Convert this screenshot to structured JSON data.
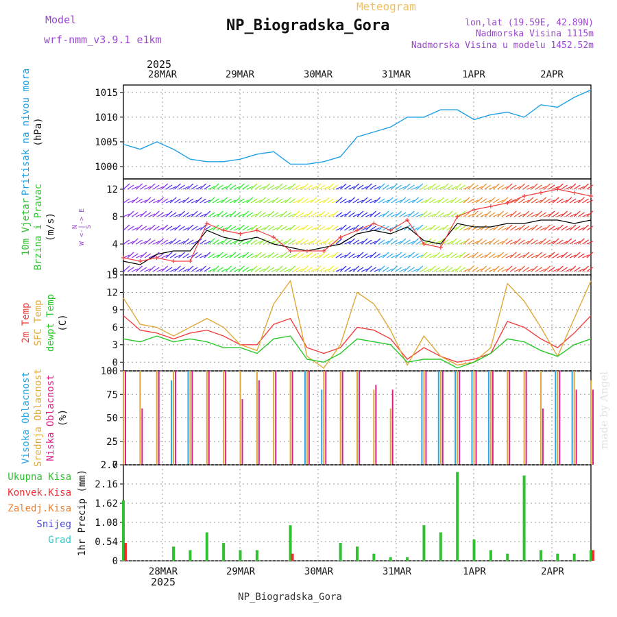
{
  "header": {
    "model_label": "Model",
    "model_name": "wrf-nmm_v3.9.1 e1km",
    "title": "NP_Biogradska_Gora",
    "subtitle": "Meteogram",
    "coords": "lon,lat (19.59E, 42.89N)",
    "elevation": "Nadmorska Visina 1115m",
    "model_elevation": "Nadmorska Visina u modelu 1452.52m",
    "footer": "NP_Biogradska_Gora",
    "credit": "made by Angel"
  },
  "colors": {
    "pressure": "#1ea0e6",
    "title_purple": "#9a48d0",
    "subtitle_gold": "#f0c060",
    "temp2m": "#f04040",
    "sfc": "#e0a838",
    "dew": "#28c828",
    "high_cloud": "#28a8e8",
    "mid_cloud": "#e0a838",
    "low_cloud": "#e0208a",
    "rain": "#30c030",
    "convective": "#f03030",
    "freezing": "#f08030",
    "snow": "#4848e0",
    "hail": "#30c8c8"
  },
  "time_axis": {
    "day_labels": [
      "28MAR",
      "29MAR",
      "30MAR",
      "31MAR",
      "1APR",
      "2APR"
    ],
    "year": "2025"
  },
  "chart_data": [
    {
      "type": "line",
      "panel": "pressure",
      "ylabel_lines": [
        "Pritisak na nivou mora",
        "(hPa)"
      ],
      "ylim": [
        997.5,
        1016.5
      ],
      "yticks": [
        "1000",
        "1005",
        "1010",
        "1015"
      ],
      "ytick_values": [
        1000,
        1005,
        1010,
        1015
      ],
      "x_hours": [
        0,
        6,
        12,
        18,
        24,
        30,
        36,
        42,
        48,
        54,
        60,
        66,
        72,
        78,
        84,
        90,
        96,
        102,
        108,
        114,
        120,
        126,
        132,
        138,
        144,
        150,
        156,
        162,
        168
      ],
      "series": [
        {
          "values": [
            1004.5,
            1003.5,
            1005.0,
            1003.5,
            1001.5,
            1001.0,
            1001.0,
            1001.5,
            1002.5,
            1003.0,
            1000.5,
            1000.5,
            1001.0,
            1002.0,
            1006.0,
            1007.0,
            1008.0,
            1010.0,
            1010.0,
            1011.5,
            1011.5,
            1009.5,
            1010.5,
            1011.0,
            1010.0,
            1012.5,
            1012.0,
            1014.0,
            1015.5
          ]
        }
      ]
    },
    {
      "type": "line",
      "panel": "wind",
      "ylabel_lines": [
        "10m Vjetar",
        "Brzina i Pravac",
        "(m/s)"
      ],
      "compass_lines": [
        "N",
        "W <-|-> E",
        "S"
      ],
      "ylim": [
        -0.5,
        13.5
      ],
      "yticks": [
        "0",
        "4",
        "8",
        "12"
      ],
      "ytick_values": [
        0,
        4,
        8,
        12
      ],
      "x_hours": [
        0,
        6,
        12,
        18,
        24,
        30,
        36,
        42,
        48,
        54,
        60,
        66,
        72,
        78,
        84,
        90,
        96,
        102,
        108,
        114,
        120,
        126,
        132,
        138,
        144,
        150,
        156,
        162,
        168
      ],
      "series": [
        {
          "name": "speed",
          "values": [
            1.5,
            1.0,
            2.5,
            3.0,
            3.0,
            6.0,
            5.0,
            4.5,
            5.0,
            4.0,
            3.5,
            3.0,
            3.5,
            4.0,
            5.5,
            6.0,
            5.5,
            6.5,
            4.5,
            4.0,
            7.0,
            6.5,
            6.5,
            7.0,
            7.0,
            7.5,
            7.5,
            7.0,
            7.5
          ]
        },
        {
          "name": "gust",
          "values": [
            2.0,
            1.5,
            2.0,
            1.5,
            1.5,
            7.0,
            6.0,
            5.5,
            6.0,
            5.0,
            3.0,
            3.0,
            3.0,
            5.0,
            6.0,
            7.0,
            6.0,
            7.5,
            4.0,
            3.5,
            8.0,
            9.0,
            9.5,
            10.0,
            11.0,
            11.5,
            12.0,
            11.5,
            11.0
          ]
        }
      ]
    },
    {
      "type": "line",
      "panel": "temperature",
      "ylabel_lines": [
        "2m Temp",
        "SFC Temp",
        "dewpt Temp",
        "(C)"
      ],
      "ylim": [
        -1.5,
        15.0
      ],
      "yticks": [
        "0",
        "3",
        "6",
        "9",
        "12",
        "15"
      ],
      "ytick_values": [
        0,
        3,
        6,
        9,
        12,
        15
      ],
      "x_hours": [
        0,
        6,
        12,
        18,
        24,
        30,
        36,
        42,
        48,
        54,
        60,
        66,
        72,
        78,
        84,
        90,
        96,
        102,
        108,
        114,
        120,
        126,
        132,
        138,
        144,
        150,
        156,
        162,
        168
      ],
      "series": [
        {
          "name": "2m Temp",
          "values": [
            8.0,
            5.5,
            5.0,
            4.0,
            5.0,
            5.5,
            4.5,
            3.0,
            3.0,
            6.5,
            7.5,
            2.5,
            1.5,
            2.5,
            6.0,
            5.5,
            4.0,
            0.5,
            2.5,
            1.0,
            0.0,
            0.5,
            1.5,
            7.0,
            6.0,
            4.0,
            2.5,
            5.0,
            8.0
          ]
        },
        {
          "name": "SFC Temp",
          "values": [
            11.0,
            6.5,
            6.0,
            4.5,
            6.0,
            7.5,
            6.0,
            3.0,
            2.0,
            10.0,
            14.0,
            1.0,
            -1.0,
            3.0,
            12.0,
            10.0,
            5.5,
            -0.5,
            4.5,
            1.0,
            -0.5,
            0.0,
            2.5,
            13.5,
            10.5,
            6.0,
            1.0,
            7.5,
            14.0
          ]
        },
        {
          "name": "dewpt Temp",
          "values": [
            4.0,
            3.5,
            4.5,
            3.5,
            4.0,
            3.5,
            2.5,
            2.5,
            1.5,
            4.0,
            4.5,
            0.5,
            0.0,
            1.5,
            4.0,
            3.5,
            3.0,
            0.0,
            0.5,
            0.5,
            -1.0,
            0.0,
            1.5,
            4.0,
            3.5,
            2.0,
            1.0,
            3.0,
            4.0
          ]
        }
      ]
    },
    {
      "type": "bar",
      "panel": "clouds",
      "ylabel_lines": [
        "Visoka Oblacnost",
        "Srednja Oblacnost",
        "Niska Oblacnost",
        "(%)"
      ],
      "ylim": [
        0,
        100
      ],
      "yticks": [
        "0",
        "25",
        "50",
        "75",
        "100"
      ],
      "ytick_values": [
        0,
        25,
        50,
        75,
        100
      ],
      "x_hours": [
        0,
        6,
        12,
        18,
        24,
        30,
        36,
        42,
        48,
        54,
        60,
        66,
        72,
        78,
        84,
        90,
        96,
        102,
        108,
        114,
        120,
        126,
        132,
        138,
        144,
        150,
        156,
        162,
        168
      ],
      "series": [
        {
          "name": "Visoka Oblacnost",
          "values": [
            0,
            0,
            0,
            90,
            100,
            0,
            0,
            0,
            0,
            0,
            0,
            100,
            80,
            0,
            0,
            0,
            0,
            0,
            100,
            100,
            100,
            100,
            100,
            0,
            0,
            0,
            100,
            100,
            0
          ]
        },
        {
          "name": "Srednja Oblacnost",
          "values": [
            100,
            100,
            100,
            100,
            100,
            100,
            100,
            100,
            100,
            100,
            100,
            100,
            100,
            100,
            100,
            80,
            60,
            0,
            100,
            100,
            100,
            100,
            100,
            100,
            100,
            100,
            100,
            100,
            90
          ]
        },
        {
          "name": "Niska Oblacnost",
          "values": [
            100,
            60,
            100,
            100,
            100,
            100,
            100,
            70,
            90,
            100,
            100,
            100,
            100,
            100,
            100,
            85,
            80,
            0,
            100,
            100,
            100,
            100,
            100,
            100,
            100,
            60,
            100,
            80,
            80
          ]
        }
      ]
    },
    {
      "type": "bar",
      "panel": "precip",
      "ylabel_lines": [
        "1hr Precip (mm)"
      ],
      "legend": [
        "Ukupna Kisa",
        "Konvek.Kisa",
        "Zaledj.Kisa",
        "Snijeg",
        "Grad"
      ],
      "ylim": [
        0,
        2.7
      ],
      "yticks": [
        "0",
        "0.54",
        "1.08",
        "1.62",
        "2.16",
        "2.7"
      ],
      "ytick_values": [
        0,
        0.54,
        1.08,
        1.62,
        2.16,
        2.7
      ],
      "x_hours": [
        0,
        6,
        12,
        18,
        24,
        30,
        36,
        42,
        48,
        54,
        60,
        66,
        72,
        78,
        84,
        90,
        96,
        102,
        108,
        114,
        120,
        126,
        132,
        138,
        144,
        150,
        156,
        162,
        168
      ],
      "series": [
        {
          "name": "Ukupna Kisa",
          "values": [
            1.7,
            0.0,
            0.0,
            0.4,
            0.3,
            0.8,
            0.5,
            0.3,
            0.3,
            0.0,
            1.0,
            0.0,
            0.0,
            0.5,
            0.4,
            0.2,
            0.1,
            0.1,
            1.0,
            0.8,
            2.5,
            0.6,
            0.3,
            0.2,
            2.4,
            0.3,
            0.2,
            0.2,
            0.3
          ]
        },
        {
          "name": "Konvek.Kisa",
          "values": [
            0.5,
            0.0,
            0.0,
            0.0,
            0.0,
            0.0,
            0.0,
            0.0,
            0.0,
            0.0,
            0.2,
            0.0,
            0.0,
            0.0,
            0.0,
            0.0,
            0.0,
            0.0,
            0.0,
            0.0,
            0.0,
            0.0,
            0.0,
            0.0,
            0.0,
            0.0,
            0.0,
            0.0,
            0.3
          ]
        }
      ]
    }
  ]
}
